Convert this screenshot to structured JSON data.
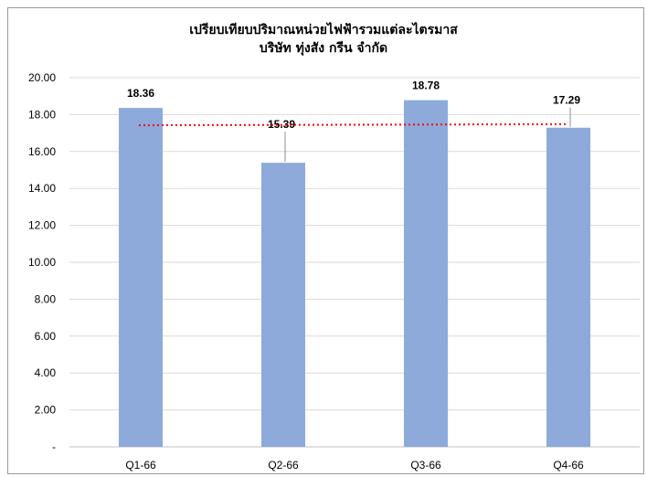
{
  "chart_data": {
    "type": "bar",
    "title": "เปรียบเทียบปริมาณหน่วยไฟฟ้ารวมแต่ละไตรมาส",
    "subtitle": "บริษัท ทุ่งสัง กรีน จำกัด",
    "categories": [
      "Q1-66",
      "Q2-66",
      "Q3-66",
      "Q4-66"
    ],
    "values": [
      18.36,
      15.39,
      18.78,
      17.29
    ],
    "value_labels": [
      "18.36",
      "15.39",
      "18.78",
      "17.29"
    ],
    "ylim": [
      0,
      20
    ],
    "yticks": [
      "-",
      "2.00",
      "4.00",
      "6.00",
      "8.00",
      "10.00",
      "12.00",
      "14.00",
      "16.00",
      "18.00",
      "20.00"
    ],
    "grid": true,
    "bar_color": "#8eaadb",
    "trendline": {
      "style": "dotted",
      "color": "#ff0000",
      "start": 17.42,
      "end": 17.48
    }
  }
}
